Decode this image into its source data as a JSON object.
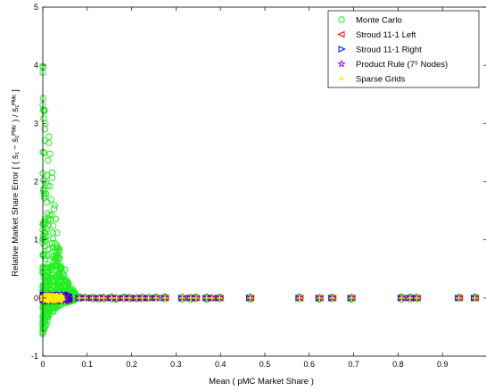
{
  "chart_data": {
    "type": "scatter",
    "title": "",
    "xlabel": "Mean ( pMC Market Share )",
    "ylabel": "Relative Market Share Error [ ( ŝ₁ − ŝ₁ᴾᴹᶜ ) / ŝ₁ᴾᴹᶜ ]",
    "xlim": [
      0,
      1
    ],
    "ylim": [
      -1,
      5
    ],
    "xticks": [
      "0",
      "0.1",
      "0.2",
      "0.3",
      "0.4",
      "0.5",
      "0.6",
      "0.7",
      "0.8",
      "0.9"
    ],
    "yticks": [
      "-1",
      "0",
      "1",
      "2",
      "3",
      "4",
      "5"
    ],
    "grid": false,
    "legend_position": "top-right",
    "colors": {
      "monte_carlo": "#22ee22",
      "stroud_left": "#ff0000",
      "stroud_right": "#0000ff",
      "product_rule": "#9900cc",
      "sparse_grids": "#ffee00"
    },
    "series": [
      {
        "name": "Monte Carlo",
        "marker": "circle",
        "color_key": "monte_carlo"
      },
      {
        "name": "Stroud 11-1 Left",
        "marker": "triangle-left",
        "color_key": "stroud_left"
      },
      {
        "name": "Stroud 11-1 Right",
        "marker": "triangle-right",
        "color_key": "stroud_right"
      },
      {
        "name": "Product Rule (7⁵ Nodes)",
        "marker": "star",
        "color_key": "product_rule"
      },
      {
        "name": "Sparse Grids",
        "marker": "plus",
        "color_key": "sparse_grids"
      }
    ],
    "shares_x": [
      0.0825,
      0.095,
      0.112,
      0.127,
      0.137,
      0.155,
      0.166,
      0.182,
      0.195,
      0.211,
      0.224,
      0.238,
      0.255,
      0.275,
      0.314,
      0.333,
      0.345,
      0.369,
      0.381,
      0.398,
      0.467,
      0.578,
      0.623,
      0.652,
      0.695,
      0.808,
      0.827,
      0.842,
      0.937,
      0.973
    ],
    "monte_carlo_spike": {
      "x_max": 0.075,
      "upper_envelope_y": [
        4.05,
        3.3,
        2.4,
        1.6,
        1.0,
        0.6,
        0.3,
        0.18,
        0.12
      ],
      "lower_envelope_y": [
        -0.65,
        -0.45,
        -0.3,
        -0.2,
        -0.14,
        -0.1,
        -0.08,
        -0.06,
        -0.05
      ]
    }
  }
}
